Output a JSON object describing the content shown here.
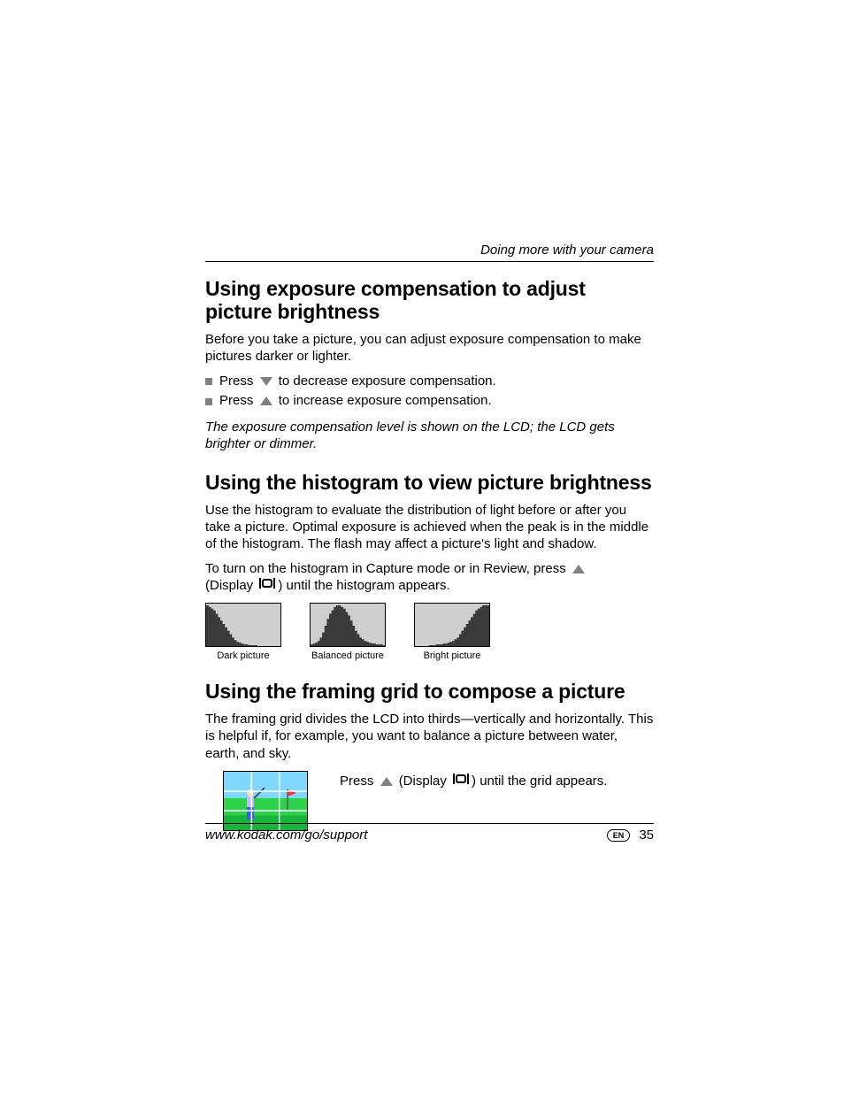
{
  "header": {
    "running_title": "Doing more with your camera"
  },
  "section1": {
    "title": "Using exposure compensation to adjust picture brightness",
    "intro": "Before you take a picture, you can adjust exposure compensation to make pictures darker or lighter.",
    "bullet1_a": "Press",
    "bullet1_b": "to decrease exposure compensation.",
    "bullet2_a": "Press",
    "bullet2_b": "to increase exposure compensation.",
    "note": "The exposure compensation level is shown on the LCD; the LCD gets brighter or dimmer."
  },
  "section2": {
    "title": "Using the histogram to view picture brightness",
    "p1": "Use the histogram to evaluate the distribution of light before or after you take a picture. Optimal exposure is achieved when the peak is in the middle of the histogram. The flash may affect a picture's light and shadow.",
    "p2a": "To turn on the histogram in Capture mode or in Review, press",
    "p2b": "(Display",
    "p2c": ") until the histogram appears.",
    "captions": [
      "Dark picture",
      "Balanced picture",
      "Bright picture"
    ],
    "hist_border": "#000000",
    "hist_bg": "#cfcfcf",
    "hist_fill": "#3a3a3a",
    "hist": {
      "dark": [
        48,
        46,
        44,
        42,
        38,
        34,
        30,
        26,
        22,
        18,
        14,
        10,
        7,
        5,
        4,
        3,
        2,
        2,
        1,
        1,
        1,
        1,
        0,
        0,
        0,
        0,
        0,
        0,
        0,
        0,
        0,
        0
      ],
      "balanced": [
        2,
        3,
        4,
        6,
        10,
        16,
        24,
        32,
        38,
        42,
        46,
        48,
        48,
        46,
        44,
        40,
        36,
        30,
        24,
        18,
        14,
        10,
        8,
        6,
        5,
        4,
        3,
        3,
        2,
        2,
        2,
        1
      ],
      "bright": [
        0,
        0,
        0,
        0,
        0,
        0,
        1,
        1,
        1,
        2,
        2,
        2,
        3,
        3,
        4,
        5,
        6,
        8,
        10,
        14,
        18,
        22,
        26,
        30,
        34,
        38,
        42,
        44,
        46,
        48,
        48,
        48
      ]
    }
  },
  "section3": {
    "title": "Using the framing grid to compose a picture",
    "p1": "The framing grid divides the LCD into thirds—vertically and horizontally. This is helpful if, for example, you want to balance a picture between water, earth, and sky.",
    "press_a": "Press",
    "press_b": "(Display",
    "press_c": ") until the grid appears.",
    "thumb": {
      "sky": "#7fd7ff",
      "grass1": "#2bd24a",
      "grass2": "#17b33a",
      "grid": "#ffffff",
      "figure_shirt": "#c9b6ff",
      "figure_pants": "#3a5cff",
      "figure_skin": "#ffd7b3",
      "flag": "#ff3030"
    }
  },
  "footer": {
    "url": "www.kodak.com/go/support",
    "lang": "EN",
    "page": "35"
  },
  "colors": {
    "bullet_gray": "#808080",
    "text": "#000000"
  }
}
